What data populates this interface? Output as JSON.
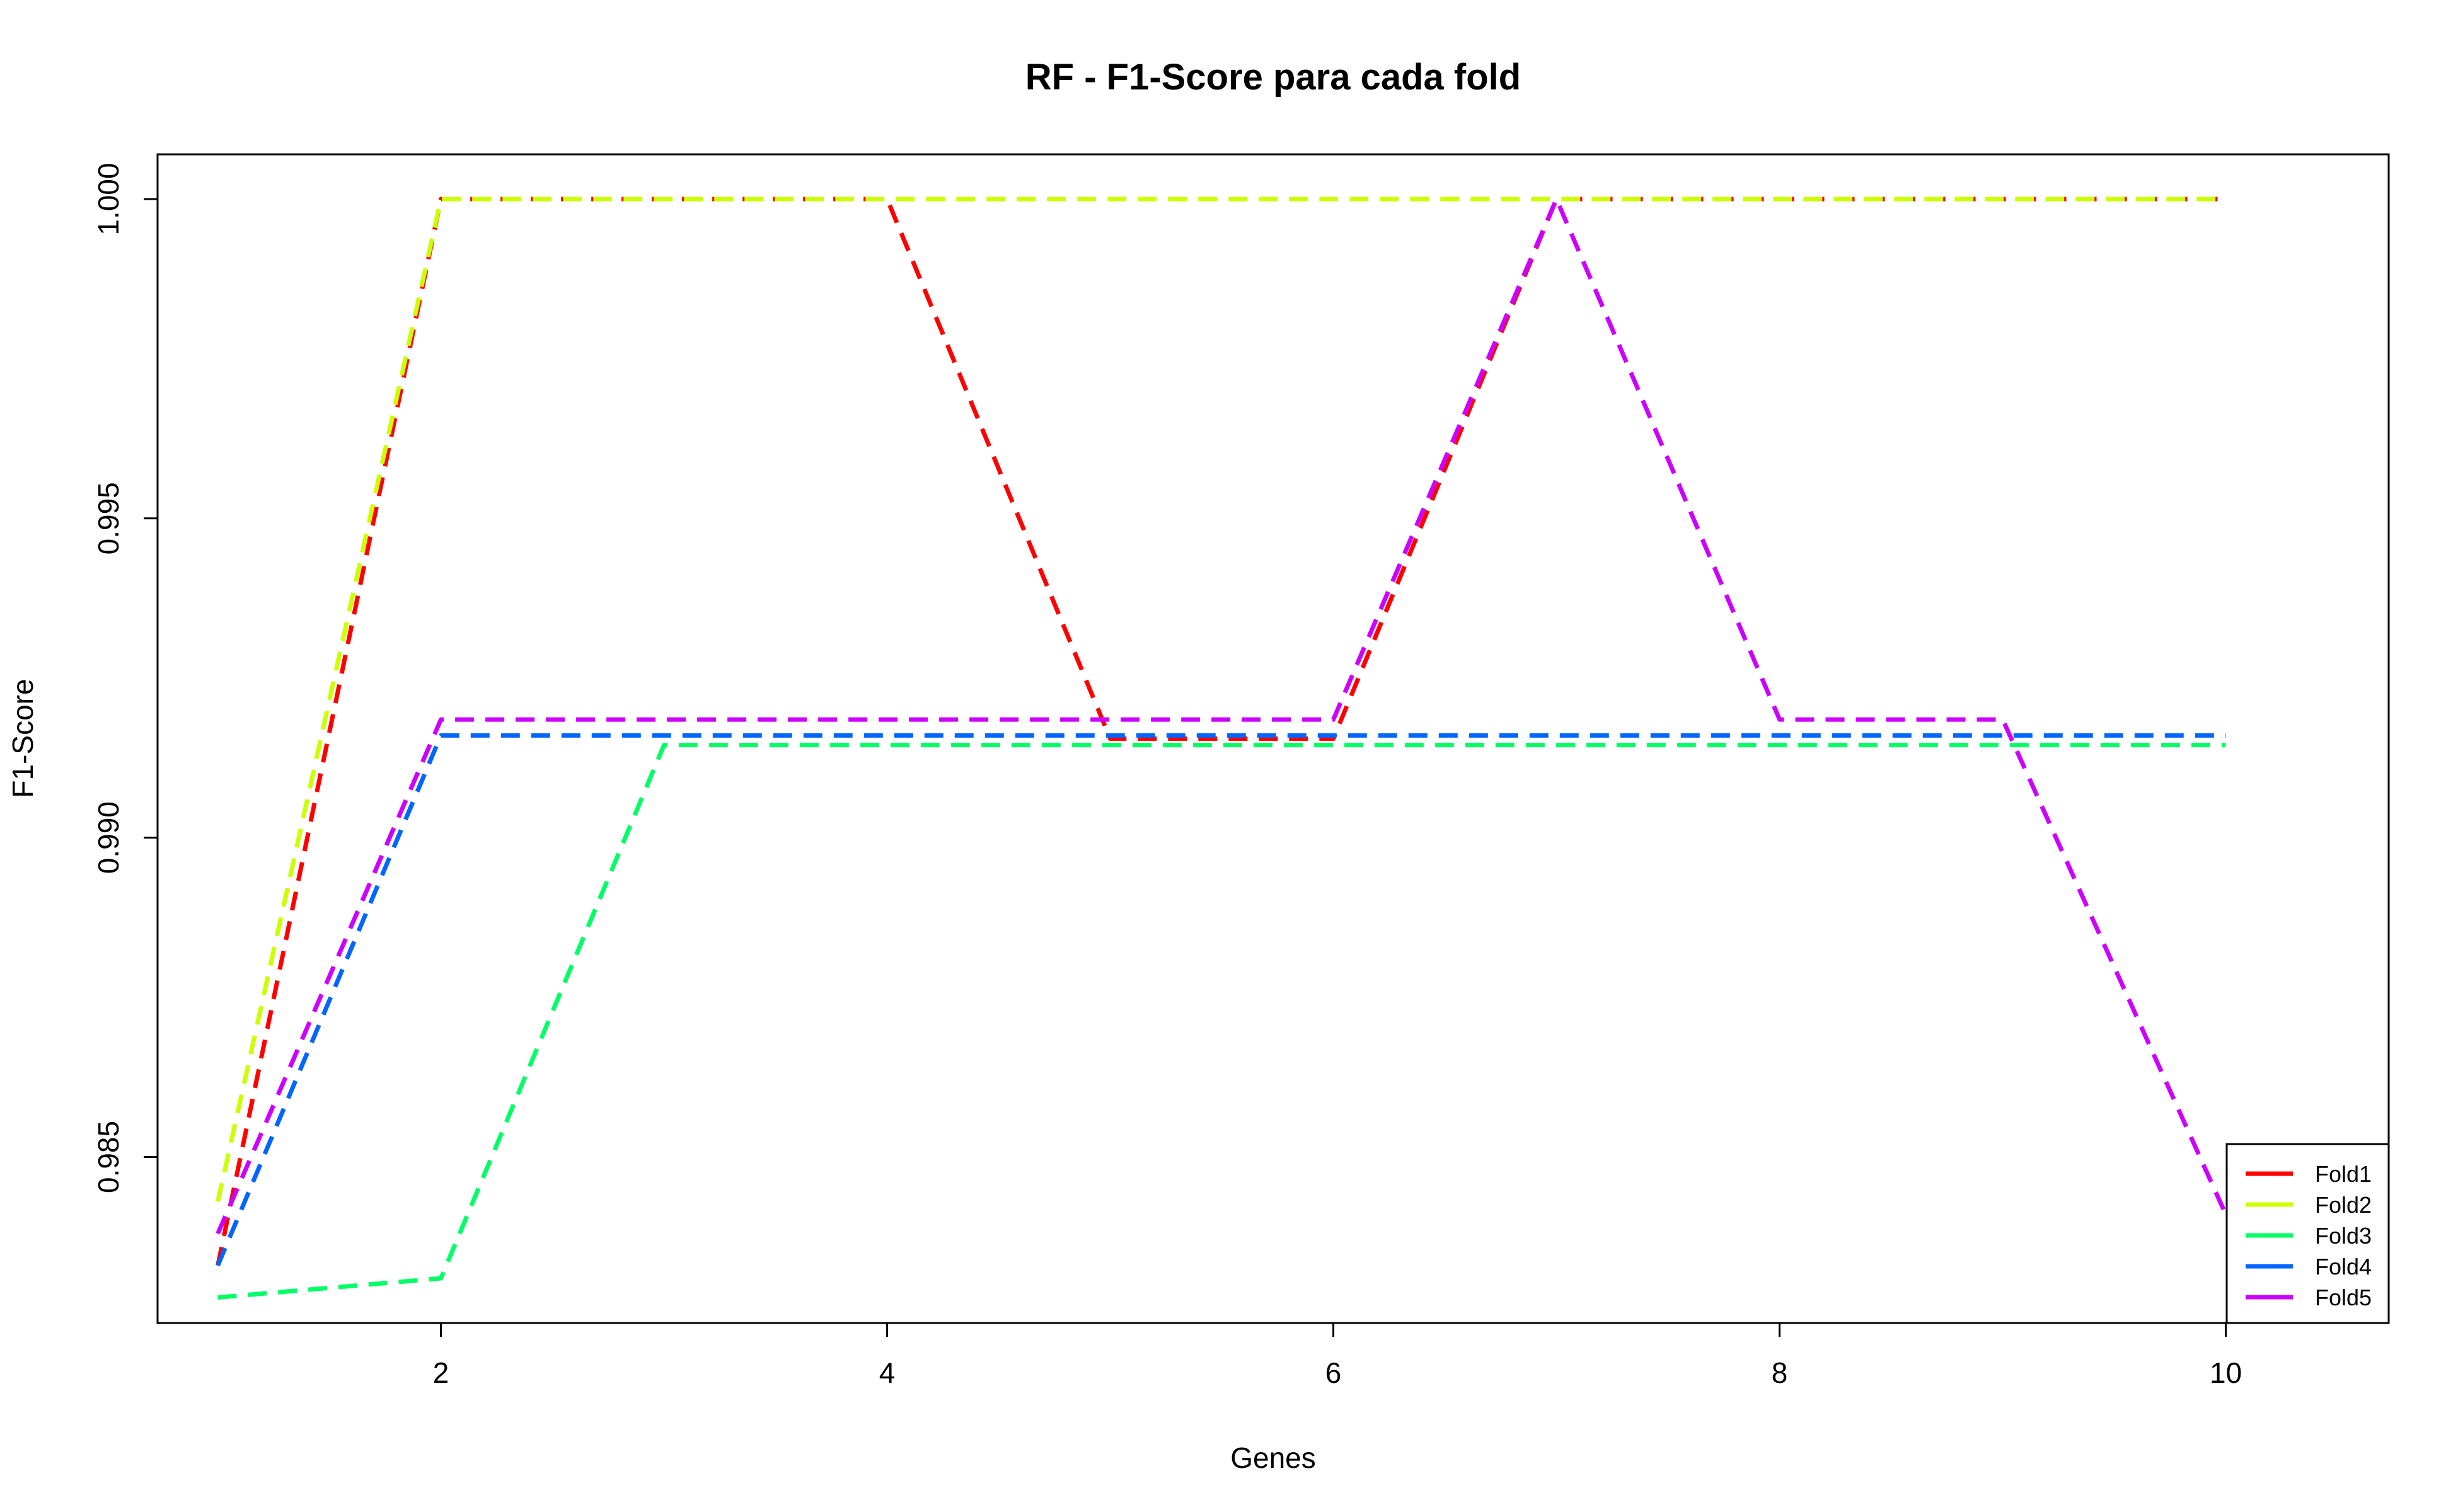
{
  "chart_data": {
    "type": "line",
    "title": "RF - F1-Score para cada fold",
    "xlabel": "Genes",
    "ylabel": "F1-Score",
    "x": [
      1,
      2,
      3,
      4,
      5,
      6,
      7,
      8,
      9,
      10
    ],
    "xlim": [
      0.73,
      10.73
    ],
    "ylim": [
      0.9824,
      1.0007
    ],
    "x_ticks": [
      2,
      4,
      6,
      8,
      10
    ],
    "y_ticks": [
      0.985,
      0.99,
      0.995,
      1.0
    ],
    "x_tick_labels": [
      "2",
      "4",
      "6",
      "8",
      "10"
    ],
    "y_tick_labels": [
      "0.985",
      "0.990",
      "0.995",
      "1.000"
    ],
    "grid": false,
    "legend_position": "bottom-right",
    "line_style": "dashed",
    "series": [
      {
        "name": "Fold1",
        "color": "#ff0000",
        "values": [
          0.9833,
          1.0,
          1.0,
          1.0,
          0.99155,
          0.99155,
          1.0,
          1.0,
          1.0,
          1.0
        ]
      },
      {
        "name": "Fold2",
        "color": "#ccff00",
        "values": [
          0.9843,
          1.0,
          1.0,
          1.0,
          1.0,
          1.0,
          1.0,
          1.0,
          1.0,
          1.0
        ]
      },
      {
        "name": "Fold3",
        "color": "#00ff66",
        "values": [
          0.9828,
          0.9831,
          0.99145,
          0.99145,
          0.99145,
          0.99145,
          0.99145,
          0.99145,
          0.99145,
          0.99145
        ]
      },
      {
        "name": "Fold4",
        "color": "#0066ff",
        "values": [
          0.9833,
          0.9916,
          0.9916,
          0.9916,
          0.9916,
          0.9916,
          0.9916,
          0.9916,
          0.9916,
          0.9916
        ]
      },
      {
        "name": "Fold5",
        "color": "#cc00ff",
        "values": [
          0.9838,
          0.99185,
          0.99185,
          0.99185,
          0.99185,
          0.99185,
          1.0,
          0.99185,
          0.99185,
          0.9841
        ]
      }
    ]
  }
}
